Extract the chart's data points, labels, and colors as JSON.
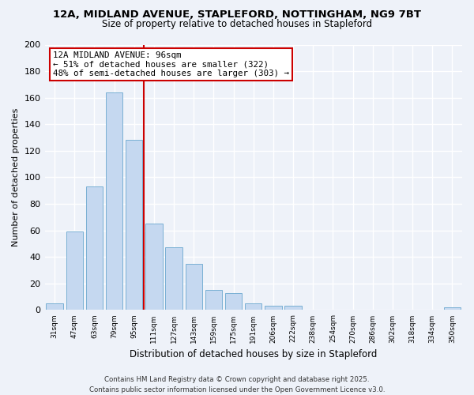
{
  "title1": "12A, MIDLAND AVENUE, STAPLEFORD, NOTTINGHAM, NG9 7BT",
  "title2": "Size of property relative to detached houses in Stapleford",
  "xlabel": "Distribution of detached houses by size in Stapleford",
  "ylabel": "Number of detached properties",
  "categories": [
    "31sqm",
    "47sqm",
    "63sqm",
    "79sqm",
    "95sqm",
    "111sqm",
    "127sqm",
    "143sqm",
    "159sqm",
    "175sqm",
    "191sqm",
    "206sqm",
    "222sqm",
    "238sqm",
    "254sqm",
    "270sqm",
    "286sqm",
    "302sqm",
    "318sqm",
    "334sqm",
    "350sqm"
  ],
  "values": [
    5,
    59,
    93,
    164,
    128,
    65,
    47,
    35,
    15,
    13,
    5,
    3,
    3,
    0,
    0,
    0,
    0,
    0,
    0,
    0,
    2
  ],
  "bar_color": "#c5d8f0",
  "bar_edge_color": "#7ab0d4",
  "marker_color": "#cc0000",
  "annotation_title": "12A MIDLAND AVENUE: 96sqm",
  "annotation_line1": "← 51% of detached houses are smaller (322)",
  "annotation_line2": "48% of semi-detached houses are larger (303) →",
  "ylim": [
    0,
    200
  ],
  "yticks": [
    0,
    20,
    40,
    60,
    80,
    100,
    120,
    140,
    160,
    180,
    200
  ],
  "footer1": "Contains HM Land Registry data © Crown copyright and database right 2025.",
  "footer2": "Contains public sector information licensed under the Open Government Licence v3.0.",
  "bg_color": "#eef2f9"
}
